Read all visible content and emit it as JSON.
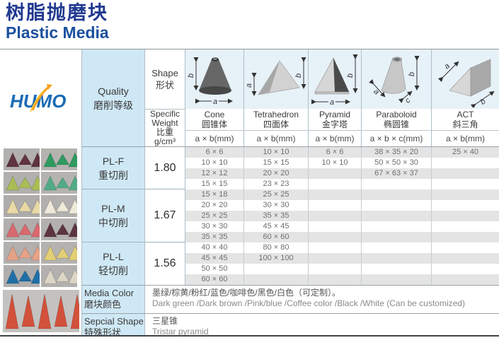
{
  "header": {
    "title_zh": "树脂抛磨块",
    "title_en": "Plastic Media"
  },
  "logo": {
    "text": "HUMO"
  },
  "diagram_labels": {
    "a": "a",
    "b": "b",
    "c": "c"
  },
  "table": {
    "quality_header": {
      "en": "Quality",
      "zh": "磨削等级"
    },
    "shape_header": {
      "en": "Shape",
      "zh": "形状"
    },
    "weight_header": {
      "en1": "Specific",
      "en2": "Weight",
      "zh": "比重",
      "unit": "g/cm³"
    },
    "columns": [
      {
        "name_en": "Cone",
        "name_zh": "圆锥体",
        "dims": "a × b(mm)"
      },
      {
        "name_en": "Tetrahedron",
        "name_zh": "四面体",
        "dims": "a × b(mm)"
      },
      {
        "name_en": "Pyramid",
        "name_zh": "金字塔",
        "dims": "a × b(mm)"
      },
      {
        "name_en": "Paraboloid",
        "name_zh": "椭圆锥",
        "dims": "a × b × c(mm)"
      },
      {
        "name_en": "ACT",
        "name_zh": "斜三角",
        "dims": "a × b(mm)"
      }
    ],
    "quality_rows": [
      {
        "grade": "PL-F",
        "grade_zh": "重切削",
        "weight": "1.80"
      },
      {
        "grade": "PL-M",
        "grade_zh": "中切削",
        "weight": "1.67"
      },
      {
        "grade": "PL-L",
        "grade_zh": "轻切削",
        "weight": "1.56"
      }
    ],
    "sizes": {
      "cone": [
        "6 × 6",
        "10 × 10",
        "12 × 12",
        "15 × 15",
        "15 × 18",
        "20 × 20",
        "25 × 25",
        "30 × 30",
        "35 × 35",
        "40 × 40",
        "45 × 45",
        "50 × 50",
        "60 × 60"
      ],
      "tetrahedron": [
        "10 × 10",
        "15 × 15",
        "20 × 20",
        "23 × 23",
        "25 × 25",
        "30 × 30",
        "35 × 35",
        "45 × 45",
        "60 × 60",
        "80 × 80",
        "100 × 100",
        "",
        ""
      ],
      "pyramid": [
        "6 × 6",
        "10 × 10",
        "",
        "",
        "",
        "",
        "",
        "",
        "",
        "",
        "",
        "",
        ""
      ],
      "paraboloid": [
        "38 × 35 × 20",
        "50 × 50 × 30",
        "67 × 63 × 37",
        "",
        "",
        "",
        "",
        "",
        "",
        "",
        "",
        "",
        ""
      ],
      "act": [
        "25 × 40",
        "",
        "",
        "",
        "",
        "",
        "",
        "",
        "",
        "",
        "",
        "",
        ""
      ]
    },
    "media_color": {
      "label_en": "Media Color",
      "label_zh": "磨块颜色",
      "value_zh": "墨绿/棕黄/粉红/蓝色/咖啡色/黑色/白色（可定制）。",
      "value_en": "Dark green /Dark brown /Pink/blue /Coffee color /Black /White (Can be customized)"
    },
    "special_shape": {
      "label_en": "Sepcial Shape",
      "label_zh": "特殊形状",
      "value_zh": "三星锥",
      "value_en": "Tristar pyramid"
    }
  },
  "colors": {
    "accent_blue_dark": "#21398f",
    "accent_blue": "#1c50a0",
    "cell_blue": "#cfe8f5",
    "illus_blue": "#e7f1f8",
    "stripe_gray": "#e4e4e4",
    "logo_blue": "#1a6cb5",
    "logo_orange": "#f7a11d"
  },
  "photos": {
    "thumbs": [
      {
        "name": "maroon-pyramids",
        "bg": "#b2b0ae",
        "color": "#5f3340"
      },
      {
        "name": "green-pyramids",
        "bg": "#b5b3b0",
        "color": "#2f9a60"
      },
      {
        "name": "olive-pyramids",
        "bg": "#b2b0ae",
        "color": "#a9bd55"
      },
      {
        "name": "teal-cones",
        "bg": "#b5b3b0",
        "color": "#52ab87"
      },
      {
        "name": "cream-cones",
        "bg": "#aeacaa",
        "color": "#e9d9a6"
      },
      {
        "name": "white-cones",
        "bg": "#b2b0ae",
        "color": "#efe9da"
      },
      {
        "name": "pink-cones",
        "bg": "#b0aeac",
        "color": "#d9696f"
      },
      {
        "name": "maroon-cones",
        "bg": "#b3b1af",
        "color": "#5c3540"
      },
      {
        "name": "peach-cones",
        "bg": "#b2b0ae",
        "color": "#e5a287"
      },
      {
        "name": "yellow-cones",
        "bg": "#b5b3b0",
        "color": "#e3cf75"
      },
      {
        "name": "blue-cones",
        "bg": "#b0aeac",
        "color": "#1f6fa6"
      },
      {
        "name": "white-tetrahedrons",
        "bg": "#b3b1af",
        "color": "#ddd6c6"
      }
    ],
    "large": {
      "name": "red-tetrahedrons",
      "bg": "#c4c2c0",
      "color": "#d2513a"
    }
  }
}
